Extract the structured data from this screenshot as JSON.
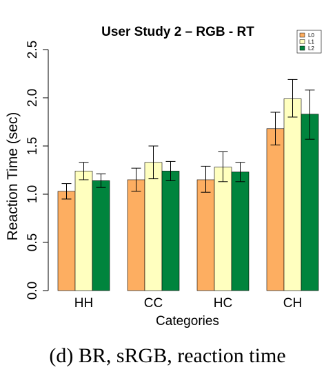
{
  "chart_data": {
    "type": "bar",
    "title": "User Study 2 – RGB - RT",
    "xlabel": "Categories",
    "ylabel": "Reaction Time (sec)",
    "ylim": [
      0,
      2.5
    ],
    "yticks": [
      "0.0",
      "0.5",
      "1.0",
      "1.5",
      "2.0",
      "2.5"
    ],
    "categories": [
      "HH",
      "CC",
      "HC",
      "CH"
    ],
    "series": [
      {
        "name": "L0",
        "color": "#fdae61",
        "values": [
          1.03,
          1.15,
          1.15,
          1.68
        ],
        "err_low": [
          0.95,
          1.03,
          1.02,
          1.51
        ],
        "err_high": [
          1.11,
          1.27,
          1.29,
          1.85
        ]
      },
      {
        "name": "L1",
        "color": "#ffffbf",
        "values": [
          1.24,
          1.33,
          1.28,
          1.99
        ],
        "err_low": [
          1.15,
          1.16,
          1.13,
          1.8
        ],
        "err_high": [
          1.33,
          1.5,
          1.44,
          2.19
        ]
      },
      {
        "name": "L2",
        "color": "#00843d",
        "values": [
          1.14,
          1.24,
          1.23,
          1.83
        ],
        "err_low": [
          1.07,
          1.14,
          1.13,
          1.57
        ],
        "err_high": [
          1.21,
          1.34,
          1.33,
          2.08
        ]
      }
    ],
    "legend_position": "top-right",
    "grid": false
  },
  "caption": "(d)  BR, sRGB, reaction time"
}
